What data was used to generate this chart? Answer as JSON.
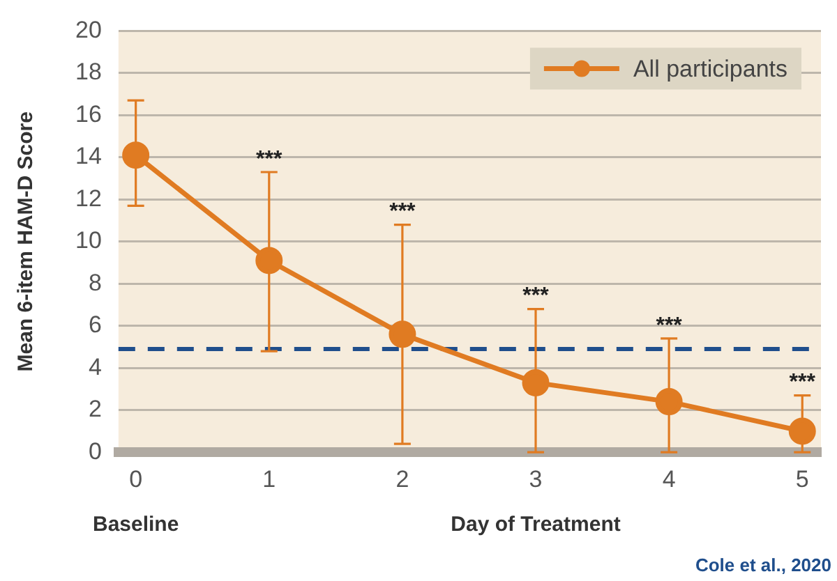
{
  "chart_data": {
    "type": "line",
    "xlabel": "Day of Treatment",
    "ylabel": "Mean 6-item HAM-D Score",
    "categories": [
      "0",
      "1",
      "2",
      "3",
      "4",
      "5"
    ],
    "series": [
      {
        "name": "All participants",
        "color": "#e07b22",
        "values": [
          14.1,
          9.1,
          5.6,
          3.3,
          2.4,
          1.0
        ],
        "errors": [
          [
            11.7,
            16.7
          ],
          [
            4.8,
            13.3
          ],
          [
            0.4,
            10.8
          ],
          [
            0,
            6.8
          ],
          [
            0,
            5.4
          ],
          [
            0,
            2.7
          ]
        ]
      }
    ],
    "ylim": [
      0,
      20
    ],
    "yticks": [
      0,
      2,
      4,
      6,
      8,
      10,
      12,
      14,
      16,
      18,
      20
    ],
    "grid": "y",
    "legend": "top right",
    "marker": "circle",
    "line_style": "solid",
    "ref_lines": [
      {
        "axis": "y",
        "value": 4.9,
        "color": "#1f4e8c",
        "line_style": "dashed"
      }
    ],
    "annotations": [
      {
        "text": "***",
        "x": "1",
        "y": 13.3
      },
      {
        "text": "***",
        "x": "2",
        "y": 10.8
      },
      {
        "text": "***",
        "x": "3",
        "y": 6.8
      },
      {
        "text": "***",
        "x": "4",
        "y": 5.4
      },
      {
        "text": "***",
        "x": "5",
        "y": 2.7
      },
      "Baseline",
      "Cole et al., 2020"
    ]
  }
}
